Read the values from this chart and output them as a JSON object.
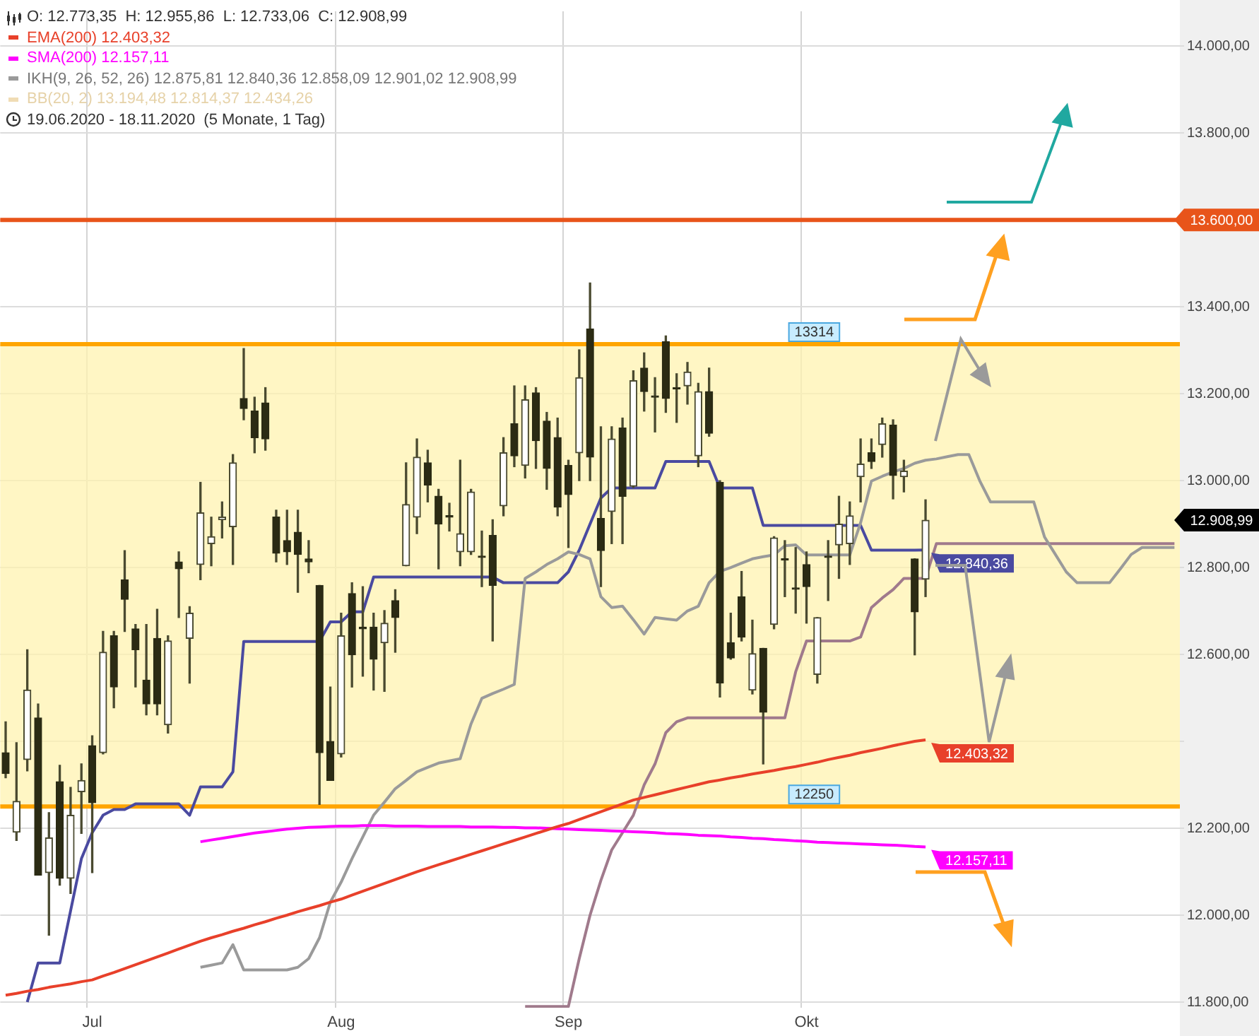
{
  "chart_data": {
    "type": "candlestick",
    "categories": [
      null,
      null,
      null,
      null,
      null,
      null,
      null,
      null,
      "Jul",
      null,
      null,
      null,
      null,
      null,
      null,
      null,
      null,
      null,
      null,
      null,
      null,
      null,
      null,
      null,
      null,
      null,
      null,
      null,
      null,
      null,
      null,
      "Aug",
      null,
      null,
      null,
      null,
      null,
      null,
      null,
      null,
      null,
      null,
      null,
      null,
      null,
      null,
      null,
      null,
      null,
      null,
      null,
      null,
      "Sep",
      null,
      null,
      null,
      null,
      null,
      null,
      null,
      null,
      null,
      null,
      null,
      null,
      null,
      null,
      null,
      null,
      null,
      null,
      null,
      null,
      null,
      "Okt",
      null,
      null,
      null,
      null,
      null,
      null,
      null,
      null,
      null,
      null,
      null,
      null,
      null,
      null,
      null,
      null,
      null,
      null,
      null,
      null,
      null,
      null,
      null,
      null,
      null,
      null,
      null,
      null,
      null,
      null,
      null,
      null,
      null,
      null
    ],
    "ohlc": [
      [
        12374,
        12445,
        12316,
        12326
      ],
      [
        12191,
        12397,
        12172,
        12262
      ],
      [
        12358,
        12611,
        12332,
        12518
      ],
      [
        12454,
        12486,
        12092,
        12092
      ],
      [
        12098,
        12236,
        11954,
        12178
      ],
      [
        12307,
        12345,
        12069,
        12085
      ],
      [
        12085,
        12294,
        12050,
        12230
      ],
      [
        12284,
        12348,
        12188,
        12310
      ],
      [
        12390,
        12413,
        12098,
        12259
      ],
      [
        12374,
        12653,
        12371,
        12605
      ],
      [
        12643,
        12653,
        12477,
        12525
      ],
      [
        12772,
        12839,
        12653,
        12727
      ],
      [
        12659,
        12669,
        12525,
        12611
      ],
      [
        12541,
        12669,
        12461,
        12486
      ],
      [
        12637,
        12704,
        12461,
        12486
      ],
      [
        12438,
        12643,
        12419,
        12631
      ],
      [
        12813,
        12836,
        12685,
        12797
      ],
      [
        12637,
        12710,
        12534,
        12695
      ],
      [
        12807,
        12996,
        12772,
        12926
      ],
      [
        12855,
        12916,
        12804,
        12871
      ],
      [
        12910,
        12951,
        12868,
        12916
      ],
      [
        12894,
        13060,
        12807,
        13041
      ],
      [
        13189,
        13304,
        13140,
        13166
      ],
      [
        13160,
        13192,
        13064,
        13099
      ],
      [
        13179,
        13214,
        13070,
        13096
      ],
      [
        12916,
        12932,
        12813,
        12833
      ],
      [
        12862,
        12932,
        12807,
        12836
      ],
      [
        12881,
        12932,
        12743,
        12830
      ],
      [
        12820,
        12862,
        12788,
        12813
      ],
      [
        12759,
        12759,
        12255,
        12374
      ],
      [
        12400,
        12525,
        12310,
        12310
      ],
      [
        12371,
        12695,
        12364,
        12643
      ],
      [
        12740,
        12765,
        12525,
        12599
      ],
      [
        12663,
        12756,
        12550,
        12659
      ],
      [
        12663,
        12695,
        12518,
        12589
      ],
      [
        12627,
        12701,
        12515,
        12672
      ],
      [
        12724,
        12749,
        12605,
        12685
      ],
      [
        12804,
        13041,
        12804,
        12945
      ],
      [
        12916,
        13096,
        12878,
        13054
      ],
      [
        13041,
        13070,
        12951,
        12990
      ],
      [
        12964,
        12980,
        12797,
        12900
      ],
      [
        12919,
        12948,
        12884,
        12916
      ],
      [
        12836,
        13047,
        12804,
        12878
      ],
      [
        12836,
        12980,
        12830,
        12974
      ],
      [
        12826,
        12884,
        12756,
        12823
      ],
      [
        12874,
        12910,
        12631,
        12759
      ],
      [
        12942,
        13099,
        12919,
        13064
      ],
      [
        13131,
        13218,
        13032,
        13057
      ],
      [
        13035,
        13218,
        13006,
        13186
      ],
      [
        13202,
        13214,
        13028,
        13092
      ],
      [
        13137,
        13157,
        12980,
        13028
      ],
      [
        13099,
        13144,
        12919,
        12939
      ],
      [
        13035,
        13047,
        12846,
        12968
      ],
      [
        13064,
        13301,
        13000,
        13237
      ],
      [
        13349,
        13455,
        13000,
        13054
      ],
      [
        12913,
        13124,
        12756,
        12839
      ],
      [
        12929,
        13124,
        12855,
        13096
      ],
      [
        13121,
        13144,
        12855,
        12964
      ],
      [
        12987,
        13253,
        12984,
        13230
      ],
      [
        13259,
        13294,
        13160,
        13205
      ],
      [
        13195,
        13237,
        13112,
        13192
      ],
      [
        13320,
        13333,
        13157,
        13189
      ],
      [
        13214,
        13246,
        13134,
        13211
      ],
      [
        13218,
        13272,
        13176,
        13250
      ],
      [
        13057,
        13224,
        13032,
        13205
      ],
      [
        13205,
        13259,
        13102,
        13109
      ],
      [
        12996,
        13000,
        12502,
        12534
      ],
      [
        12627,
        12695,
        12589,
        12592
      ],
      [
        12733,
        12791,
        12631,
        12640
      ],
      [
        12518,
        12679,
        12509,
        12602
      ],
      [
        12614,
        12614,
        12348,
        12467
      ],
      [
        12669,
        12871,
        12659,
        12868
      ],
      [
        12820,
        12862,
        12733,
        12817
      ],
      [
        12753,
        12846,
        12695,
        12750
      ],
      [
        12807,
        12836,
        12672,
        12756
      ],
      [
        12554,
        12685,
        12534,
        12685
      ],
      [
        12826,
        12862,
        12724,
        12823
      ],
      [
        12852,
        12964,
        12775,
        12900
      ],
      [
        12855,
        12951,
        12807,
        12919
      ],
      [
        13009,
        13096,
        12951,
        13038
      ],
      [
        13064,
        13096,
        13028,
        13044
      ],
      [
        13083,
        13144,
        13054,
        13131
      ],
      [
        13128,
        13140,
        12958,
        13012
      ],
      [
        13009,
        13047,
        12974,
        13022
      ],
      [
        12820,
        12820,
        12599,
        12698
      ],
      [
        12773.35,
        12955.86,
        12733.06,
        12908.99
      ],
      null,
      null,
      null,
      null,
      null,
      null,
      null,
      null,
      null,
      null,
      null,
      null,
      null,
      null,
      null,
      null,
      null,
      null,
      null,
      null,
      null,
      null,
      null
    ],
    "value_labels": [
      null,
      null,
      null,
      null,
      null,
      null,
      null,
      null,
      null,
      null,
      null,
      null,
      null,
      null,
      null,
      null,
      null,
      null,
      null,
      null,
      null,
      null,
      null,
      null,
      null,
      null,
      null,
      null,
      null,
      null,
      null,
      null,
      null,
      null,
      null,
      null,
      null,
      null,
      null,
      null,
      null,
      null,
      null,
      null,
      null,
      null,
      null,
      null,
      null,
      null,
      null,
      null,
      null,
      null,
      null,
      null,
      null,
      null,
      null,
      null,
      null,
      null,
      null,
      null,
      null,
      null,
      null,
      null,
      null,
      null,
      null,
      null,
      null,
      null,
      null,
      null,
      null,
      null,
      null,
      null,
      null,
      null,
      null,
      null,
      null,
      "12.908,99",
      null,
      null,
      null,
      null,
      null,
      null,
      null,
      null,
      null,
      null,
      null,
      null,
      null,
      null,
      null,
      null,
      null,
      null,
      null,
      null,
      null,
      null,
      null
    ],
    "series": [
      {
        "type": "line",
        "name": "EMA(200) 12.403,32",
        "color": "#e8402a",
        "value_labels": [
          null,
          null,
          null,
          null,
          null,
          null,
          null,
          null,
          null,
          null,
          null,
          null,
          null,
          null,
          null,
          null,
          null,
          null,
          null,
          null,
          null,
          null,
          null,
          null,
          null,
          null,
          null,
          null,
          null,
          null,
          null,
          null,
          null,
          null,
          null,
          null,
          null,
          null,
          null,
          null,
          null,
          null,
          null,
          null,
          null,
          null,
          null,
          null,
          null,
          null,
          null,
          null,
          null,
          null,
          null,
          null,
          null,
          null,
          null,
          null,
          null,
          null,
          null,
          null,
          null,
          null,
          null,
          null,
          null,
          null,
          null,
          null,
          null,
          null,
          null,
          null,
          null,
          null,
          null,
          null,
          null,
          null,
          null,
          null,
          null,
          "12.403,32",
          null,
          null,
          null,
          null,
          null,
          null,
          null,
          null,
          null,
          null,
          null,
          null,
          null,
          null,
          null,
          null,
          null,
          null,
          null,
          null,
          null,
          null,
          null
        ],
        "values": [
          11816,
          11820,
          11825,
          11829,
          11834,
          11838,
          11842,
          11847,
          11851,
          11860,
          11868,
          11877,
          11886,
          11895,
          11904,
          11913,
          11922,
          11931,
          11940,
          11948,
          11955,
          11963,
          11970,
          11978,
          11985,
          11993,
          12000,
          12008,
          12015,
          12022,
          12030,
          12037,
          12046,
          12055,
          12064,
          12073,
          12082,
          12091,
          12100,
          12108,
          12116,
          12124,
          12132,
          12140,
          12148,
          12156,
          12164,
          12172,
          12180,
          12188,
          12196,
          12204,
          12211,
          12220,
          12229,
          12238,
          12247,
          12256,
          12265,
          12271,
          12277,
          12283,
          12289,
          12295,
          12301,
          12307,
          12311,
          12316,
          12320,
          12325,
          12329,
          12333,
          12338,
          12342,
          12347,
          12352,
          12358,
          12363,
          12368,
          12374,
          12379,
          12384,
          12390,
          12395,
          12400,
          12403.32,
          null,
          null,
          null,
          null,
          null,
          null,
          null,
          null,
          null,
          null,
          null,
          null,
          null,
          null,
          null,
          null,
          null,
          null,
          null,
          null,
          null,
          null,
          null
        ]
      },
      {
        "type": "line",
        "name": "SMA(200) 12.157,11",
        "color": "#ff00ff",
        "value_labels": [
          null,
          null,
          null,
          null,
          null,
          null,
          null,
          null,
          null,
          null,
          null,
          null,
          null,
          null,
          null,
          null,
          null,
          null,
          null,
          null,
          null,
          null,
          null,
          null,
          null,
          null,
          null,
          null,
          null,
          null,
          null,
          null,
          null,
          null,
          null,
          null,
          null,
          null,
          null,
          null,
          null,
          null,
          null,
          null,
          null,
          null,
          null,
          null,
          null,
          null,
          null,
          null,
          null,
          null,
          null,
          null,
          null,
          null,
          null,
          null,
          null,
          null,
          null,
          null,
          null,
          null,
          null,
          null,
          null,
          null,
          null,
          null,
          null,
          null,
          null,
          null,
          null,
          null,
          null,
          null,
          null,
          null,
          null,
          null,
          null,
          "12.157,11",
          null,
          null,
          null,
          null,
          null,
          null,
          null,
          null,
          null,
          null,
          null,
          null,
          null,
          null,
          null,
          null,
          null,
          null,
          null,
          null,
          null,
          null,
          null
        ],
        "values": [
          null,
          null,
          null,
          null,
          null,
          null,
          null,
          null,
          null,
          null,
          null,
          null,
          null,
          null,
          null,
          null,
          null,
          null,
          12169,
          12173,
          12177,
          12181,
          12185,
          12189,
          12192,
          12195,
          12198,
          12200,
          12202,
          12203,
          12204,
          12205,
          12205,
          12206,
          12206,
          12206,
          12205,
          12205,
          12205,
          12204,
          12204,
          12204,
          12204,
          12203,
          12203,
          12203,
          12202,
          12202,
          12201,
          12201,
          12200,
          12199,
          12198,
          12197,
          12196,
          12195,
          12194,
          12193,
          12192,
          12191,
          12190,
          12188,
          12187,
          12186,
          12184,
          12183,
          12182,
          12180,
          12179,
          12177,
          12176,
          12174,
          12173,
          12171,
          12170,
          12168,
          12167,
          12166,
          12165,
          12164,
          12163,
          12162,
          12161,
          12160,
          12158,
          12157.11,
          null,
          null,
          null,
          null,
          null,
          null,
          null,
          null,
          null,
          null,
          null,
          null,
          null,
          null,
          null,
          null,
          null,
          null,
          null,
          null,
          null,
          null,
          null
        ]
      },
      {
        "type": "line",
        "name": "IKH(9, 26, 52, 26) 12.875,81 12.840,36 12.858,09 12.901,02 12.908,99",
        "color": "#9a9a9a",
        "values": [
          null,
          null,
          null,
          null,
          null,
          null,
          null,
          null,
          null,
          null,
          null,
          null,
          null,
          null,
          null,
          null,
          null,
          null,
          11880,
          11885,
          11890,
          11932,
          11874,
          11874,
          11874,
          11874,
          11874,
          11880,
          11900,
          11948,
          12030,
          12076,
          12130,
          12180,
          12230,
          12260,
          12291,
          12310,
          12330,
          12340,
          12350,
          12355,
          12360,
          12440,
          12499,
          12510,
          12520,
          12531,
          12775,
          12790,
          12807,
          12820,
          12836,
          12830,
          12820,
          12733,
          12708,
          12711,
          12680,
          12647,
          12685,
          12682,
          12679,
          12700,
          12711,
          12765,
          12791,
          12800,
          12810,
          12820,
          12825,
          12829,
          12850,
          12852,
          12829,
          12829,
          12829,
          12829,
          12829,
          12903,
          12999,
          13010,
          13020,
          13028,
          13040,
          13047,
          13050,
          13055,
          13060,
          13060,
          13000,
          12951,
          12951,
          12951,
          12951,
          12951,
          12870,
          12830,
          12790,
          12765,
          12765,
          12765,
          12765,
          12797,
          12830,
          12846,
          12846,
          12846,
          12846
        ]
      },
      {
        "type": "line",
        "color": "#4a4aa0",
        "value_labels": [
          null,
          null,
          null,
          null,
          null,
          null,
          null,
          null,
          null,
          null,
          null,
          null,
          null,
          null,
          null,
          null,
          null,
          null,
          null,
          null,
          null,
          null,
          null,
          null,
          null,
          null,
          null,
          null,
          null,
          null,
          null,
          null,
          null,
          null,
          null,
          null,
          null,
          null,
          null,
          null,
          null,
          null,
          null,
          null,
          null,
          null,
          null,
          null,
          null,
          null,
          null,
          null,
          null,
          null,
          null,
          null,
          null,
          null,
          null,
          null,
          null,
          null,
          null,
          null,
          null,
          null,
          null,
          null,
          null,
          null,
          null,
          null,
          null,
          null,
          null,
          null,
          null,
          null,
          null,
          null,
          null,
          null,
          null,
          null,
          null,
          "12.840,36",
          null,
          null,
          null,
          null,
          null,
          null,
          null,
          null,
          null,
          null,
          null,
          null,
          null,
          null,
          null,
          null,
          null,
          null,
          null,
          null,
          null,
          null,
          null
        ],
        "values": [
          null,
          null,
          11800,
          11890,
          11890,
          11890,
          12010,
          12130,
          12190,
          12230,
          12243,
          12243,
          12256,
          12256,
          12256,
          12256,
          12256,
          12230,
          12295,
          12295,
          12295,
          12330,
          12630,
          12630,
          12630,
          12630,
          12630,
          12630,
          12630,
          12630,
          12675,
          12675,
          12698,
          12698,
          12778,
          12778,
          12778,
          12778,
          12778,
          12778,
          12778,
          12778,
          12778,
          12778,
          12778,
          12778,
          12765,
          12765,
          12765,
          12765,
          12765,
          12765,
          12790,
          12840,
          12900,
          12960,
          12983,
          12983,
          12983,
          12983,
          12983,
          13044,
          13044,
          13044,
          13044,
          13044,
          12983,
          12983,
          12983,
          12983,
          12897,
          12897,
          12897,
          12897,
          12897,
          12897,
          12897,
          12897,
          12897,
          12897,
          12840,
          12840,
          12840,
          12840,
          12840,
          12840.36,
          null,
          null,
          null,
          null,
          null,
          null,
          null,
          null,
          null,
          null,
          null,
          null,
          null,
          null,
          null,
          null,
          null,
          null,
          null,
          null,
          null,
          null,
          null
        ]
      },
      {
        "type": "line",
        "color": "#a07a8c",
        "values": [
          null,
          null,
          null,
          null,
          null,
          null,
          null,
          null,
          null,
          null,
          null,
          null,
          null,
          null,
          null,
          null,
          null,
          null,
          null,
          null,
          null,
          null,
          null,
          null,
          null,
          null,
          null,
          null,
          null,
          null,
          null,
          null,
          null,
          null,
          null,
          null,
          null,
          null,
          null,
          null,
          null,
          null,
          null,
          null,
          null,
          null,
          null,
          null,
          11790,
          11790,
          11790,
          11790,
          11790,
          11900,
          12000,
          12080,
          12150,
          12190,
          12230,
          12300,
          12348,
          12420,
          12445,
          12454,
          12454,
          12454,
          12454,
          12454,
          12454,
          12454,
          12454,
          12454,
          12454,
          12560,
          12631,
          12631,
          12631,
          12631,
          12631,
          12640,
          12708,
          12730,
          12749,
          12775,
          12775,
          12775,
          12855,
          12855,
          12855,
          12855,
          12855,
          12855,
          12855,
          12855,
          12855,
          12855,
          12855,
          12855,
          12855,
          12855,
          12855,
          12855,
          12855,
          12855,
          12855,
          12855,
          12855,
          12855,
          12855
        ]
      }
    ],
    "ylim": [
      11787,
      14080
    ],
    "yticks": [
      {
        "value": 11800,
        "label": "11.800,00"
      },
      {
        "value": 12000,
        "label": "12.000,00"
      },
      {
        "value": 12200,
        "label": "12.200,00"
      },
      {
        "value": 12400,
        "label": null
      },
      {
        "value": 12600,
        "label": "12.600,00"
      },
      {
        "value": 12800,
        "label": "12.800,00"
      },
      {
        "value": 13000,
        "label": "13.000,00"
      },
      {
        "value": 13200,
        "label": "13.200,00"
      },
      {
        "value": 13400,
        "label": "13.400,00"
      },
      {
        "value": 13600,
        "label": "13.600,00"
      },
      {
        "value": 13800,
        "label": "13.800,00"
      },
      {
        "value": 14000,
        "label": "14.000,00"
      }
    ],
    "grid": true,
    "legend": "top left",
    "bands": [
      {
        "axis": "y",
        "from": 12250,
        "to": 13314,
        "color": "#fff3b0"
      }
    ],
    "ref_lines": [
      {
        "axis": "y",
        "value": 13600,
        "color": "#e8541a"
      },
      {
        "axis": "y",
        "value": 13314,
        "label": "13314",
        "color": "#ffa500"
      },
      {
        "axis": "y",
        "value": 12250,
        "label": "12250",
        "color": "#ffa500"
      }
    ],
    "annotations": [
      "O: 12.773,35  H: 12.955,86  L: 12.733,06  C: 12.908,99",
      "BB(20, 2) 13.194,48 12.814,37 12.434,26",
      "19.06.2020 - 18.11.2020  (5 Monate, 1 Tag)"
    ]
  }
}
